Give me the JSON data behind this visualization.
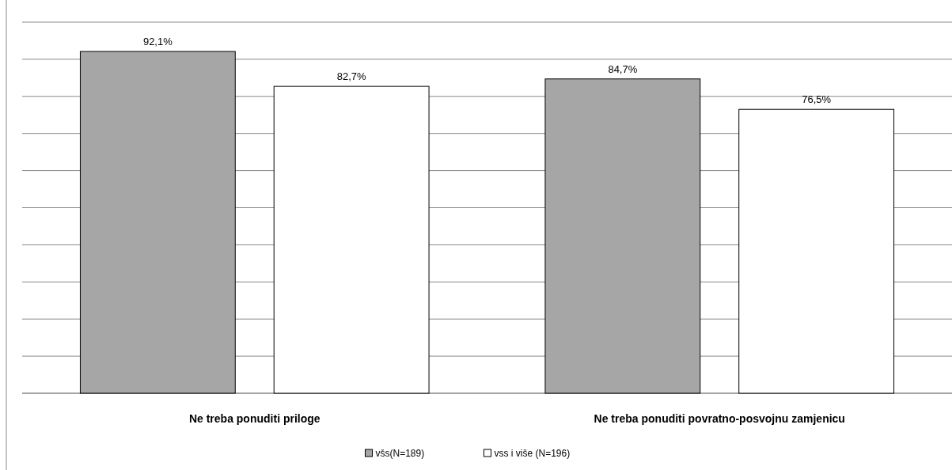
{
  "chart_data": {
    "type": "bar",
    "categories": [
      "Ne treba ponuditi priloge",
      "Ne treba ponuditi povratno-posvojnu zamjenicu"
    ],
    "series": [
      {
        "name": "všs(N=189)",
        "color": "#a6a6a6",
        "values": [
          92.1,
          84.7
        ],
        "value_labels": [
          "92,1%",
          "84,7%"
        ]
      },
      {
        "name": "vss i više  (N=196)",
        "color": "#ffffff",
        "values": [
          82.7,
          76.5
        ],
        "value_labels": [
          "82,7%",
          "76,5%"
        ]
      }
    ],
    "ylim": [
      0,
      100
    ],
    "yticks": [
      {
        "value": 0,
        "label": null
      },
      {
        "value": 10,
        "label": null
      },
      {
        "value": 20,
        "label": null
      },
      {
        "value": 30,
        "label": null
      },
      {
        "value": 40,
        "label": null
      },
      {
        "value": 50,
        "label": null
      },
      {
        "value": 60,
        "label": null
      },
      {
        "value": 70,
        "label": null
      },
      {
        "value": 80,
        "label": null
      },
      {
        "value": 90,
        "label": null
      },
      {
        "value": 100,
        "label": null
      }
    ],
    "grid": "y",
    "legend": "bottom",
    "tick_labels": "x"
  }
}
